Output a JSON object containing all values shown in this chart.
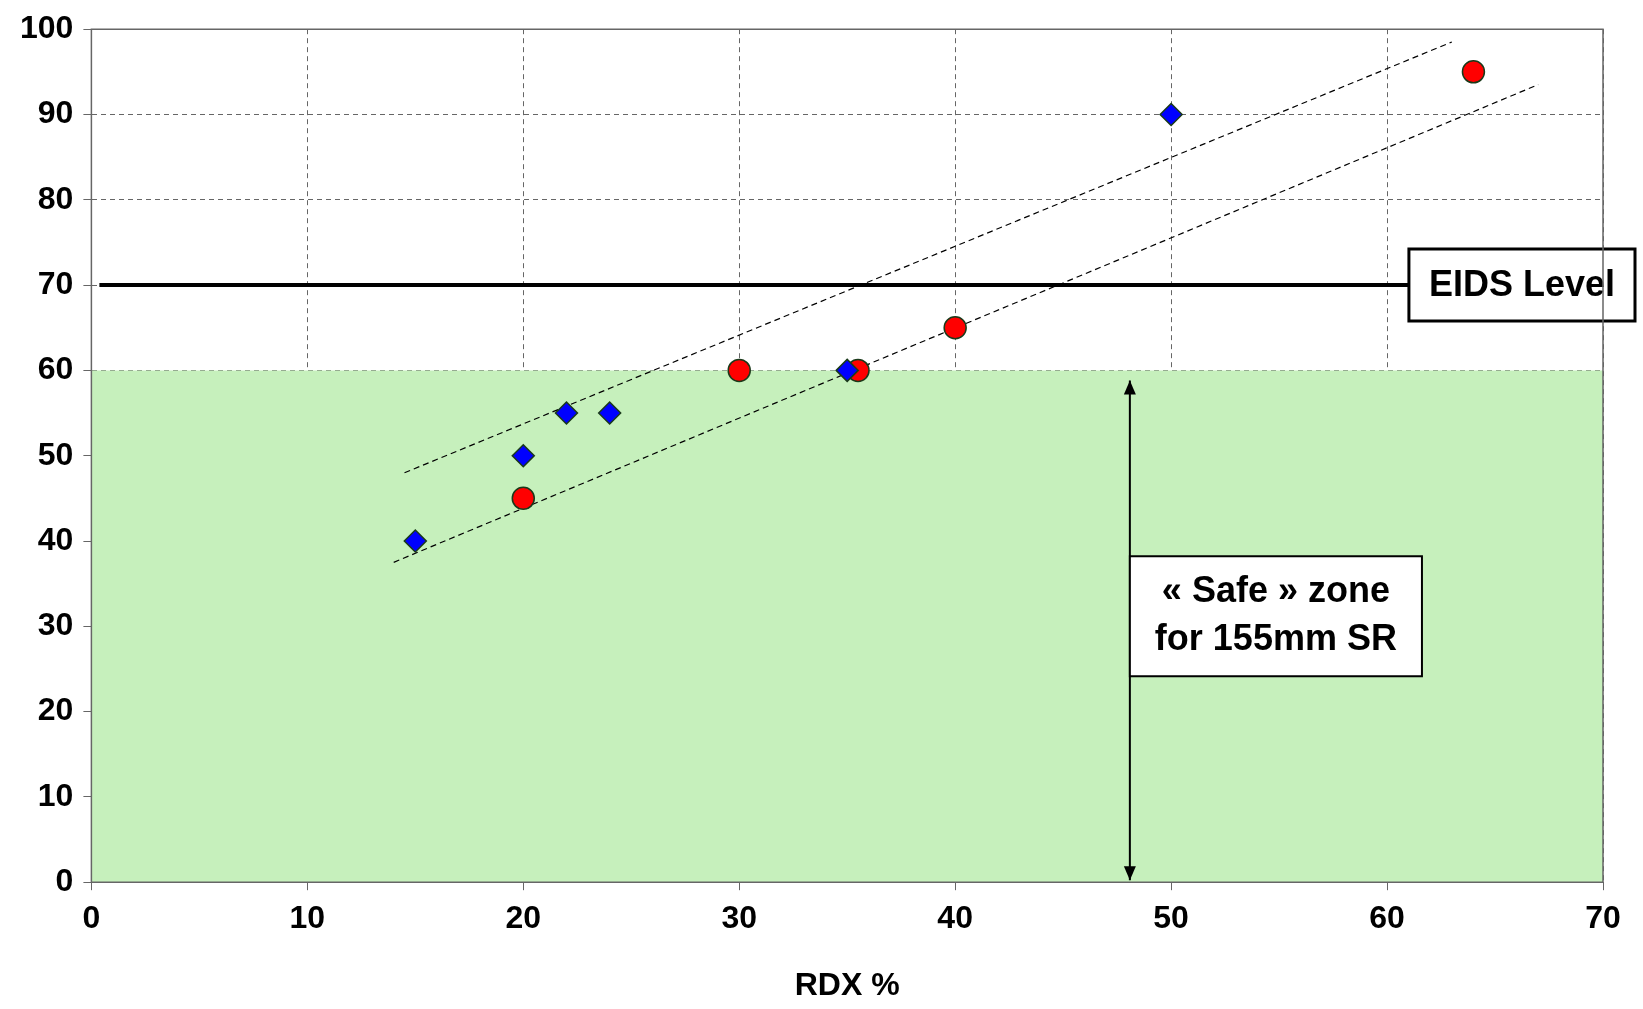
{
  "chart_data": {
    "type": "scatter",
    "xlabel": "RDX %",
    "xlim": [
      0,
      70
    ],
    "xticks": [
      0,
      10,
      20,
      30,
      40,
      50,
      60,
      70
    ],
    "ylim": [
      0,
      100
    ],
    "yticks": [
      0,
      10,
      20,
      30,
      40,
      50,
      60,
      70,
      80,
      90,
      100
    ],
    "grid": true,
    "legend": false,
    "series": [
      {
        "type": "scatter",
        "color": "#0000ff",
        "marker": "diamond",
        "x": [
          15,
          20,
          22,
          24,
          35,
          50
        ],
        "values": [
          40,
          50,
          55,
          55,
          60,
          90
        ]
      },
      {
        "type": "scatter",
        "color": "#ff0000",
        "marker": "circle",
        "x": [
          20,
          30,
          35.5,
          40,
          64
        ],
        "values": [
          45,
          60,
          60,
          65,
          95
        ]
      },
      {
        "type": "line",
        "color": "#000000",
        "marker": "none",
        "line_style": "dashed",
        "x": [
          14.5,
          63
        ],
        "values": [
          48,
          98.5
        ]
      },
      {
        "type": "line",
        "color": "#000000",
        "marker": "none",
        "line_style": "dashed",
        "x": [
          14,
          67
        ],
        "values": [
          37.5,
          93.5
        ]
      }
    ],
    "ref_lines": [
      {
        "axis": "y",
        "value": 70,
        "label": "EIDS Level",
        "color": "#000000"
      }
    ],
    "bands": [
      {
        "axis": "y",
        "from": 0,
        "to": 60,
        "label": "« Safe » zone for 155mm SR",
        "color": "#c6f0bc"
      }
    ]
  }
}
